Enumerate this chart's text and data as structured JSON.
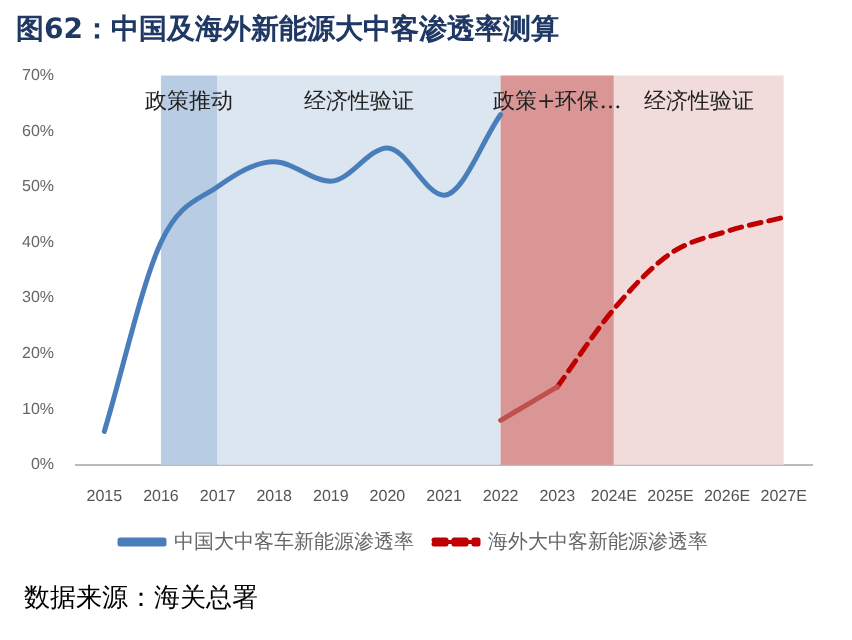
{
  "chart_data": {
    "type": "line",
    "title": "图62：中国及海外新能源大中客渗透率测算",
    "categories": [
      "2015",
      "2016",
      "2017",
      "2018",
      "2019",
      "2020",
      "2021",
      "2022",
      "2023",
      "2024E",
      "2025E",
      "2026E",
      "2027E"
    ],
    "series": [
      {
        "name": "中国大中客车新能源渗透率",
        "color": "#4a7ebb",
        "line_style": "solid",
        "values": [
          6,
          40,
          50,
          54.5,
          51,
          57,
          48.5,
          63,
          null,
          null,
          null,
          null,
          null
        ]
      },
      {
        "color": "#c0504d",
        "line_style": "solid",
        "values": [
          null,
          null,
          null,
          null,
          null,
          null,
          null,
          8,
          14,
          null,
          null,
          null,
          null
        ]
      },
      {
        "name": "海外大中客新能源渗透率",
        "color": "#c00000",
        "line_style": "dashed",
        "values": [
          null,
          null,
          null,
          null,
          null,
          null,
          null,
          null,
          14,
          28,
          38,
          42,
          44.5
        ]
      }
    ],
    "ylim": [
      0,
      70
    ],
    "yticks": [
      {
        "value": 0,
        "label": "0%"
      },
      {
        "value": 10,
        "label": "10%"
      },
      {
        "value": 20,
        "label": "20%"
      },
      {
        "value": 30,
        "label": "30%"
      },
      {
        "value": 40,
        "label": "40%"
      },
      {
        "value": 50,
        "label": "50%"
      },
      {
        "value": 60,
        "label": "60%"
      },
      {
        "value": 70,
        "label": "70%"
      }
    ],
    "bands": [
      {
        "axis": "x",
        "from": "2016",
        "to": "2017",
        "label": "政策推动",
        "color": "#b8cce4"
      },
      {
        "axis": "x",
        "from": "2017",
        "to": "2022",
        "label": "经济性验证",
        "color": "#dce6f1"
      },
      {
        "axis": "x",
        "from": "2022",
        "to": "2024E",
        "label": "政策+环保…",
        "color": "#d99694"
      },
      {
        "axis": "x",
        "from": "2024E",
        "to": "2027E",
        "label": "经济性验证",
        "color": "#f2dcdb"
      }
    ],
    "grid": false,
    "legend": "bottom",
    "marker": "none",
    "annotations": [
      "数据来源：海关总署"
    ]
  }
}
